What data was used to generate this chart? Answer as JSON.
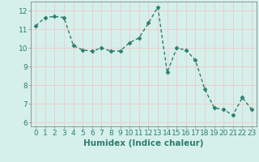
{
  "xlabel": "Humidex (Indice chaleur)",
  "ylabel": "",
  "x": [
    0,
    1,
    2,
    3,
    4,
    5,
    6,
    7,
    8,
    9,
    10,
    11,
    12,
    13,
    14,
    15,
    16,
    17,
    18,
    19,
    20,
    21,
    22,
    23
  ],
  "y": [
    11.2,
    11.65,
    11.7,
    11.65,
    10.15,
    9.9,
    9.85,
    10.0,
    9.85,
    9.85,
    10.3,
    10.55,
    11.35,
    12.2,
    8.7,
    10.0,
    9.9,
    9.35,
    7.8,
    6.8,
    6.7,
    6.4,
    7.35,
    6.7
  ],
  "line_color": "#2e7d6e",
  "marker": "D",
  "marker_size": 2.5,
  "bg_color": "#d5f0ea",
  "grid_color": "#f0c8c8",
  "ylim": [
    5.8,
    12.5
  ],
  "yticks": [
    6,
    7,
    8,
    9,
    10,
    11,
    12
  ],
  "xlim": [
    -0.5,
    23.5
  ],
  "tick_fontsize": 6.5,
  "xlabel_fontsize": 7.5,
  "line_width": 1.0
}
